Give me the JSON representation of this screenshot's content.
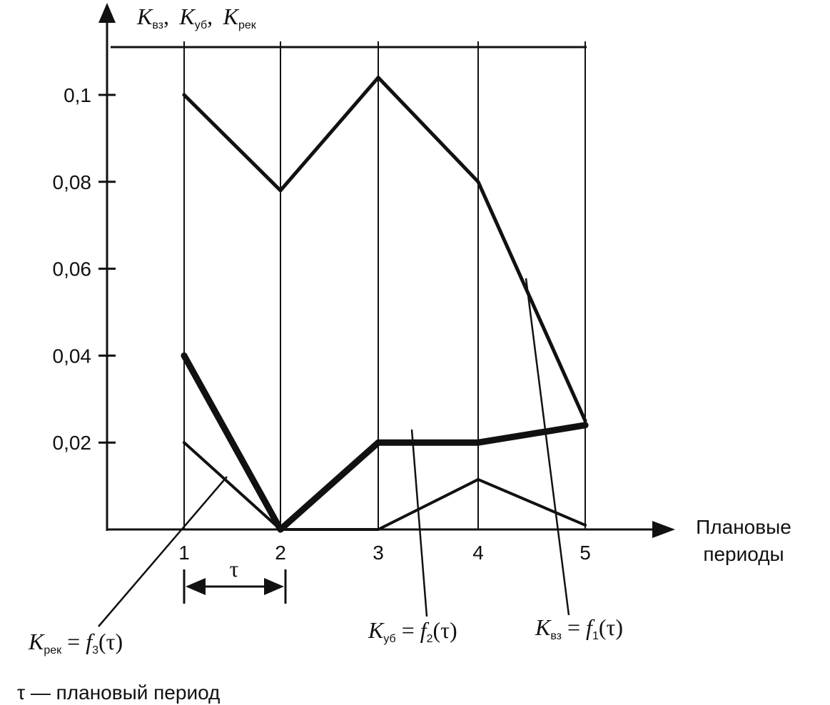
{
  "chart_data": {
    "type": "line",
    "x": [
      1,
      2,
      3,
      4,
      5
    ],
    "xlabel_line1": "Плановые",
    "xlabel_line2": "периоды",
    "y_ticks": [
      "0,02",
      "0,04",
      "0,06",
      "0,08",
      "0,1"
    ],
    "y_tick_values": [
      0.02,
      0.04,
      0.06,
      0.08,
      0.1
    ],
    "x_ticks": [
      "1",
      "2",
      "3",
      "4",
      "5"
    ],
    "ylim": [
      0,
      0.11
    ],
    "grid": "vertical",
    "ylabel": {
      "k1": "K",
      "k1_sub": "вз",
      "sep1": ",",
      "k2": "K",
      "k2_sub": "уб",
      "sep2": ",",
      "k3": "K",
      "k3_sub": "рек"
    },
    "series": [
      {
        "values": [
          0.1,
          0.078,
          0.104,
          0.08,
          0.025
        ],
        "label_k": "K",
        "label_sub": "вз",
        "label_eq": " = ",
        "label_f": "f",
        "label_f_sub": "1",
        "label_arg": "(τ)",
        "width": 5,
        "color": "#111111"
      },
      {
        "values": [
          0.04,
          0.0,
          0.02,
          0.02,
          0.024
        ],
        "label_k": "K",
        "label_sub": "уб",
        "label_eq": " = ",
        "label_f": "f",
        "label_f_sub": "2",
        "label_arg": "(τ)",
        "width": 9,
        "color": "#111111"
      },
      {
        "values": [
          0.02,
          0.0,
          0.0,
          0.0115,
          0.001
        ],
        "label_k": "K",
        "label_sub": "рек",
        "label_eq": " = ",
        "label_f": "f",
        "label_f_sub": "3",
        "label_arg": "(τ)",
        "width": 4,
        "color": "#111111"
      }
    ],
    "interval_symbol": "τ",
    "footnote": "τ — плановый период"
  }
}
